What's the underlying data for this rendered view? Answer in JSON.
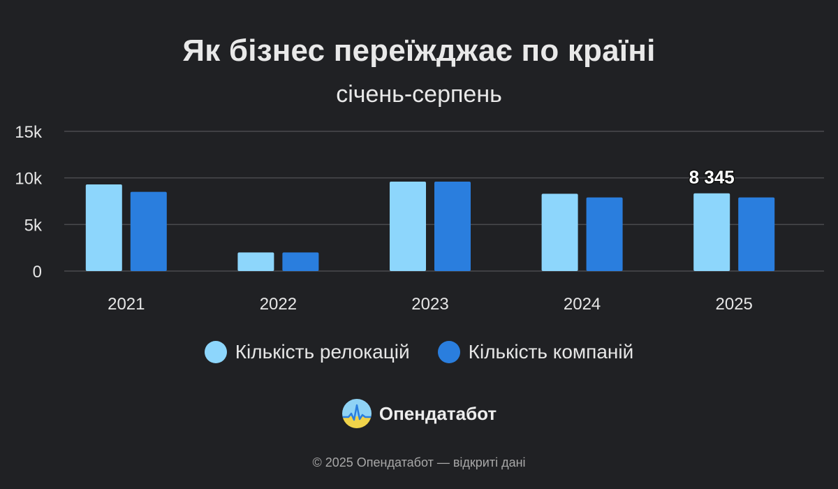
{
  "header": {
    "title": "Як бізнес переїжджає по країні",
    "subtitle": "січень-серпень"
  },
  "chart_data": {
    "type": "bar",
    "categories": [
      "2021",
      "2022",
      "2023",
      "2024",
      "2025"
    ],
    "series": [
      {
        "name": "Кількість релокацій",
        "values": [
          9300,
          2000,
          9600,
          8300,
          8345
        ],
        "color": "#8dd6fc"
      },
      {
        "name": "Кількість компаній",
        "values": [
          8500,
          2000,
          9600,
          7900,
          7900
        ],
        "color": "#2a7ede"
      }
    ],
    "yticks": [
      "0",
      "5k",
      "10k",
      "15k"
    ],
    "ylim": [
      0,
      15000
    ],
    "grid": true,
    "legend_position": "bottom",
    "annotations": [
      {
        "category": "2025",
        "series": "Кількість релокацій",
        "text": "8 345"
      }
    ]
  },
  "brand": {
    "name": "Опендатабот",
    "logo_icon": "opendatabot-logo-icon",
    "logo_colors": {
      "sky": "#8fd3f5",
      "ground": "#f0d34a",
      "line": "#2a7ede"
    }
  },
  "footer": {
    "text": "© 2025 Опендатабот — відкриті дані"
  },
  "colors": {
    "background": "#202124",
    "grid": "#4a4b4e",
    "text": "#e6e6e6"
  }
}
